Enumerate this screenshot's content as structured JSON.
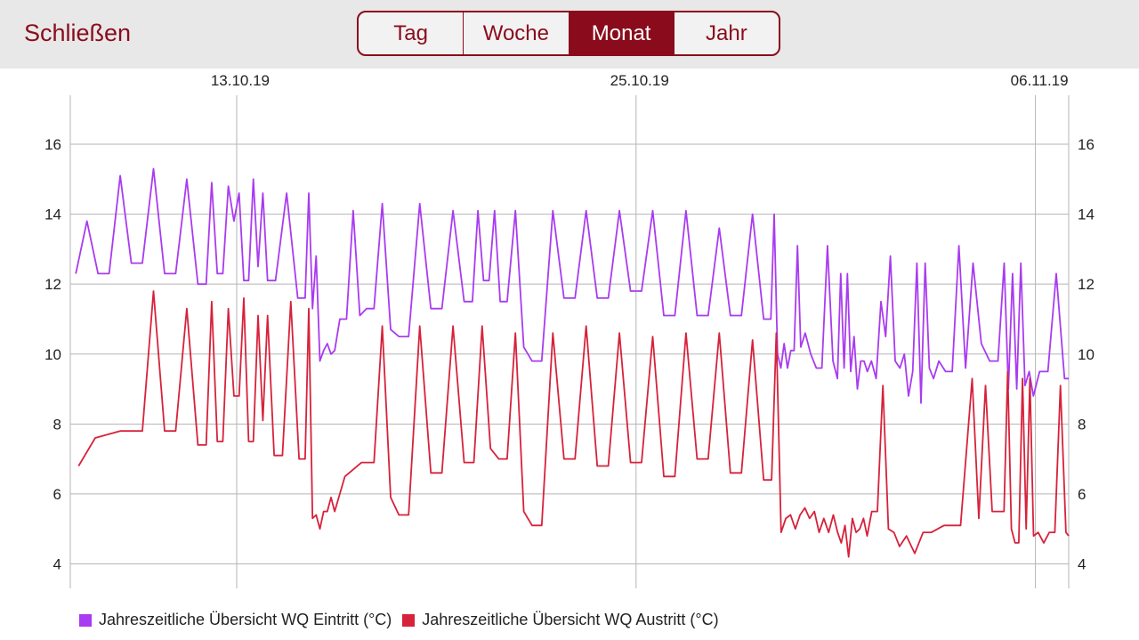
{
  "header": {
    "close_label": "Schließen",
    "tabs": [
      {
        "label": "Tag",
        "active": false
      },
      {
        "label": "Woche",
        "active": false
      },
      {
        "label": "Monat",
        "active": true
      },
      {
        "label": "Jahr",
        "active": false
      }
    ],
    "accent_color": "#8a0c1c"
  },
  "chart_data": {
    "type": "line",
    "title": "",
    "xlabel": "",
    "ylabel": "",
    "x_range": [
      "2019-10-08",
      "2019-11-07"
    ],
    "x_tick_labels": [
      "13.10.19",
      "25.10.19",
      "06.11.19"
    ],
    "ylim": [
      3.3,
      17.4
    ],
    "y_ticks": [
      4,
      6,
      8,
      10,
      12,
      14,
      16
    ],
    "grid": true,
    "legend_position": "bottom",
    "series": [
      {
        "name": "Jahreszeitliche Übersicht WQ Eintritt (°C)",
        "color": "#a93bf0",
        "points": [
          [
            "2019-10-08",
            12.3
          ],
          [
            "2019-10-08",
            13.8
          ],
          [
            "2019-10-08",
            12.3
          ],
          [
            "2019-10-09",
            12.3
          ],
          [
            "2019-10-09",
            15.1
          ],
          [
            "2019-10-09",
            12.6
          ],
          [
            "2019-10-10",
            12.6
          ],
          [
            "2019-10-10",
            15.3
          ],
          [
            "2019-10-10",
            12.3
          ],
          [
            "2019-10-11",
            12.3
          ],
          [
            "2019-10-11",
            15.0
          ],
          [
            "2019-10-11",
            12.0
          ],
          [
            "2019-10-12",
            12.0
          ],
          [
            "2019-10-12",
            14.9
          ],
          [
            "2019-10-12",
            12.3
          ],
          [
            "2019-10-12",
            12.3
          ],
          [
            "2019-10-12",
            14.8
          ],
          [
            "2019-10-12",
            13.8
          ],
          [
            "2019-10-13",
            14.6
          ],
          [
            "2019-10-13",
            12.1
          ],
          [
            "2019-10-13",
            12.1
          ],
          [
            "2019-10-13",
            15.0
          ],
          [
            "2019-10-13",
            12.5
          ],
          [
            "2019-10-13",
            14.6
          ],
          [
            "2019-10-13",
            12.1
          ],
          [
            "2019-10-14",
            12.1
          ],
          [
            "2019-10-14",
            14.6
          ],
          [
            "2019-10-14",
            11.6
          ],
          [
            "2019-10-15",
            11.6
          ],
          [
            "2019-10-15",
            14.6
          ],
          [
            "2019-10-15",
            11.3
          ],
          [
            "2019-10-15",
            12.8
          ],
          [
            "2019-10-15",
            9.8
          ],
          [
            "2019-10-15",
            10.1
          ],
          [
            "2019-10-15",
            10.3
          ],
          [
            "2019-10-15",
            10.0
          ],
          [
            "2019-10-15",
            10.1
          ],
          [
            "2019-10-16",
            11.0
          ],
          [
            "2019-10-16",
            11.0
          ],
          [
            "2019-10-16",
            14.1
          ],
          [
            "2019-10-16",
            11.1
          ],
          [
            "2019-10-16",
            11.3
          ],
          [
            "2019-10-17",
            11.3
          ],
          [
            "2019-10-17",
            14.3
          ],
          [
            "2019-10-17",
            10.7
          ],
          [
            "2019-10-17",
            10.5
          ],
          [
            "2019-10-18",
            10.5
          ],
          [
            "2019-10-18",
            14.3
          ],
          [
            "2019-10-18",
            11.3
          ],
          [
            "2019-10-19",
            11.3
          ],
          [
            "2019-10-19",
            14.1
          ],
          [
            "2019-10-19",
            11.5
          ],
          [
            "2019-10-20",
            11.5
          ],
          [
            "2019-10-20",
            14.1
          ],
          [
            "2019-10-20",
            12.1
          ],
          [
            "2019-10-20",
            12.1
          ],
          [
            "2019-10-20",
            14.1
          ],
          [
            "2019-10-20",
            11.5
          ],
          [
            "2019-10-21",
            11.5
          ],
          [
            "2019-10-21",
            14.1
          ],
          [
            "2019-10-21",
            10.2
          ],
          [
            "2019-10-21",
            9.8
          ],
          [
            "2019-10-22",
            9.8
          ],
          [
            "2019-10-22",
            14.1
          ],
          [
            "2019-10-22",
            11.6
          ],
          [
            "2019-10-23",
            11.6
          ],
          [
            "2019-10-23",
            14.1
          ],
          [
            "2019-10-23",
            11.6
          ],
          [
            "2019-10-24",
            11.6
          ],
          [
            "2019-10-24",
            14.1
          ],
          [
            "2019-10-24",
            11.8
          ],
          [
            "2019-10-25",
            11.8
          ],
          [
            "2019-10-25",
            14.1
          ],
          [
            "2019-10-25",
            11.1
          ],
          [
            "2019-10-26",
            11.1
          ],
          [
            "2019-10-26",
            14.1
          ],
          [
            "2019-10-26",
            11.1
          ],
          [
            "2019-10-27",
            11.1
          ],
          [
            "2019-10-27",
            13.6
          ],
          [
            "2019-10-27",
            11.1
          ],
          [
            "2019-10-28",
            11.1
          ],
          [
            "2019-10-28",
            14.0
          ],
          [
            "2019-10-28",
            11.0
          ],
          [
            "2019-10-29",
            11.0
          ],
          [
            "2019-10-29",
            14.0
          ],
          [
            "2019-10-29",
            10.0
          ],
          [
            "2019-10-29",
            9.6
          ],
          [
            "2019-10-29",
            10.3
          ],
          [
            "2019-10-29",
            9.6
          ],
          [
            "2019-10-29",
            10.1
          ],
          [
            "2019-10-29",
            10.1
          ],
          [
            "2019-10-29",
            13.1
          ],
          [
            "2019-10-29",
            10.2
          ],
          [
            "2019-10-30",
            10.6
          ],
          [
            "2019-10-30",
            10.0
          ],
          [
            "2019-10-30",
            9.6
          ],
          [
            "2019-10-30",
            9.6
          ],
          [
            "2019-10-30",
            13.1
          ],
          [
            "2019-10-30",
            9.8
          ],
          [
            "2019-10-31",
            9.3
          ],
          [
            "2019-10-31",
            12.3
          ],
          [
            "2019-10-31",
            9.6
          ],
          [
            "2019-10-31",
            12.3
          ],
          [
            "2019-10-31",
            9.5
          ],
          [
            "2019-10-31",
            10.5
          ],
          [
            "2019-10-31",
            9.0
          ],
          [
            "2019-10-31",
            9.8
          ],
          [
            "2019-10-31",
            9.8
          ],
          [
            "2019-10-31",
            9.5
          ],
          [
            "2019-11-01",
            9.8
          ],
          [
            "2019-11-01",
            9.3
          ],
          [
            "2019-11-01",
            11.5
          ],
          [
            "2019-11-01",
            10.5
          ],
          [
            "2019-11-01",
            12.8
          ],
          [
            "2019-11-01",
            9.8
          ],
          [
            "2019-11-01",
            9.6
          ],
          [
            "2019-11-02",
            10.0
          ],
          [
            "2019-11-02",
            8.8
          ],
          [
            "2019-11-02",
            9.5
          ],
          [
            "2019-11-02",
            12.6
          ],
          [
            "2019-11-02",
            8.6
          ],
          [
            "2019-11-02",
            12.6
          ],
          [
            "2019-11-02",
            9.6
          ],
          [
            "2019-11-02",
            9.3
          ],
          [
            "2019-11-03",
            9.8
          ],
          [
            "2019-11-03",
            9.5
          ],
          [
            "2019-11-03",
            9.5
          ],
          [
            "2019-11-03",
            13.1
          ],
          [
            "2019-11-03",
            9.6
          ],
          [
            "2019-11-04",
            12.6
          ],
          [
            "2019-11-04",
            10.3
          ],
          [
            "2019-11-04",
            9.8
          ],
          [
            "2019-11-04",
            9.8
          ],
          [
            "2019-11-05",
            12.6
          ],
          [
            "2019-11-05",
            9.0
          ],
          [
            "2019-11-05",
            12.3
          ],
          [
            "2019-11-05",
            9.0
          ],
          [
            "2019-11-05",
            12.6
          ],
          [
            "2019-11-05",
            9.1
          ],
          [
            "2019-11-05",
            9.5
          ],
          [
            "2019-11-05",
            8.8
          ],
          [
            "2019-11-06",
            9.5
          ],
          [
            "2019-11-06",
            9.5
          ],
          [
            "2019-11-06",
            12.3
          ],
          [
            "2019-11-06",
            9.3
          ],
          [
            "2019-11-07",
            9.3
          ]
        ]
      },
      {
        "name": "Jahreszeitliche Übersicht WQ Austritt (°C)",
        "color": "#d6223b",
        "points": [
          [
            "2019-10-08",
            6.8
          ],
          [
            "2019-10-08",
            7.6
          ],
          [
            "2019-10-09",
            7.8
          ],
          [
            "2019-10-10",
            7.8
          ],
          [
            "2019-10-10",
            11.8
          ],
          [
            "2019-10-10",
            7.8
          ],
          [
            "2019-10-11",
            7.8
          ],
          [
            "2019-10-11",
            11.3
          ],
          [
            "2019-10-11",
            7.4
          ],
          [
            "2019-10-12",
            7.4
          ],
          [
            "2019-10-12",
            11.5
          ],
          [
            "2019-10-12",
            7.5
          ],
          [
            "2019-10-12",
            7.5
          ],
          [
            "2019-10-12",
            11.3
          ],
          [
            "2019-10-12",
            8.8
          ],
          [
            "2019-10-13",
            8.8
          ],
          [
            "2019-10-13",
            11.6
          ],
          [
            "2019-10-13",
            7.5
          ],
          [
            "2019-10-13",
            7.5
          ],
          [
            "2019-10-13",
            11.1
          ],
          [
            "2019-10-13",
            8.1
          ],
          [
            "2019-10-13",
            11.1
          ],
          [
            "2019-10-14",
            7.1
          ],
          [
            "2019-10-14",
            7.1
          ],
          [
            "2019-10-14",
            11.5
          ],
          [
            "2019-10-14",
            7.0
          ],
          [
            "2019-10-15",
            7.0
          ],
          [
            "2019-10-15",
            11.3
          ],
          [
            "2019-10-15",
            5.3
          ],
          [
            "2019-10-15",
            5.4
          ],
          [
            "2019-10-15",
            5.0
          ],
          [
            "2019-10-15",
            5.5
          ],
          [
            "2019-10-15",
            5.5
          ],
          [
            "2019-10-15",
            5.9
          ],
          [
            "2019-10-15",
            5.5
          ],
          [
            "2019-10-16",
            6.5
          ],
          [
            "2019-10-16",
            6.9
          ],
          [
            "2019-10-17",
            6.9
          ],
          [
            "2019-10-17",
            10.8
          ],
          [
            "2019-10-17",
            5.9
          ],
          [
            "2019-10-17",
            5.4
          ],
          [
            "2019-10-18",
            5.4
          ],
          [
            "2019-10-18",
            10.8
          ],
          [
            "2019-10-18",
            6.6
          ],
          [
            "2019-10-19",
            6.6
          ],
          [
            "2019-10-19",
            10.8
          ],
          [
            "2019-10-19",
            6.9
          ],
          [
            "2019-10-20",
            6.9
          ],
          [
            "2019-10-20",
            10.8
          ],
          [
            "2019-10-20",
            7.3
          ],
          [
            "2019-10-20",
            7.0
          ],
          [
            "2019-10-21",
            7.0
          ],
          [
            "2019-10-21",
            10.6
          ],
          [
            "2019-10-21",
            5.5
          ],
          [
            "2019-10-21",
            5.1
          ],
          [
            "2019-10-22",
            5.1
          ],
          [
            "2019-10-22",
            10.6
          ],
          [
            "2019-10-22",
            7.0
          ],
          [
            "2019-10-23",
            7.0
          ],
          [
            "2019-10-23",
            10.8
          ],
          [
            "2019-10-23",
            6.8
          ],
          [
            "2019-10-24",
            6.8
          ],
          [
            "2019-10-24",
            10.6
          ],
          [
            "2019-10-24",
            6.9
          ],
          [
            "2019-10-25",
            6.9
          ],
          [
            "2019-10-25",
            10.5
          ],
          [
            "2019-10-25",
            6.5
          ],
          [
            "2019-10-26",
            6.5
          ],
          [
            "2019-10-26",
            10.6
          ],
          [
            "2019-10-26",
            7.0
          ],
          [
            "2019-10-27",
            7.0
          ],
          [
            "2019-10-27",
            10.6
          ],
          [
            "2019-10-27",
            6.6
          ],
          [
            "2019-10-28",
            6.6
          ],
          [
            "2019-10-28",
            10.4
          ],
          [
            "2019-10-28",
            6.4
          ],
          [
            "2019-10-29",
            6.4
          ],
          [
            "2019-10-29",
            10.6
          ],
          [
            "2019-10-29",
            4.9
          ],
          [
            "2019-10-29",
            5.3
          ],
          [
            "2019-10-29",
            5.4
          ],
          [
            "2019-10-29",
            5.0
          ],
          [
            "2019-10-29",
            5.4
          ],
          [
            "2019-10-30",
            5.6
          ],
          [
            "2019-10-30",
            5.3
          ],
          [
            "2019-10-30",
            5.5
          ],
          [
            "2019-10-30",
            4.9
          ],
          [
            "2019-10-30",
            5.3
          ],
          [
            "2019-10-30",
            4.9
          ],
          [
            "2019-10-30",
            5.4
          ],
          [
            "2019-10-31",
            4.9
          ],
          [
            "2019-10-31",
            4.6
          ],
          [
            "2019-10-31",
            5.1
          ],
          [
            "2019-10-31",
            4.2
          ],
          [
            "2019-10-31",
            5.3
          ],
          [
            "2019-10-31",
            4.9
          ],
          [
            "2019-10-31",
            5.0
          ],
          [
            "2019-10-31",
            5.3
          ],
          [
            "2019-10-31",
            4.8
          ],
          [
            "2019-11-01",
            5.5
          ],
          [
            "2019-11-01",
            5.5
          ],
          [
            "2019-11-01",
            9.1
          ],
          [
            "2019-11-01",
            5.0
          ],
          [
            "2019-11-01",
            4.9
          ],
          [
            "2019-11-01",
            4.5
          ],
          [
            "2019-11-02",
            4.8
          ],
          [
            "2019-11-02",
            4.3
          ],
          [
            "2019-11-02",
            4.9
          ],
          [
            "2019-11-02",
            4.9
          ],
          [
            "2019-11-03",
            5.1
          ],
          [
            "2019-11-03",
            5.1
          ],
          [
            "2019-11-04",
            9.3
          ],
          [
            "2019-11-04",
            5.3
          ],
          [
            "2019-11-04",
            9.1
          ],
          [
            "2019-11-04",
            5.5
          ],
          [
            "2019-11-04",
            5.5
          ],
          [
            "2019-11-05",
            5.5
          ],
          [
            "2019-11-05",
            9.5
          ],
          [
            "2019-11-05",
            5.0
          ],
          [
            "2019-11-05",
            4.6
          ],
          [
            "2019-11-05",
            4.6
          ],
          [
            "2019-11-05",
            9.3
          ],
          [
            "2019-11-05",
            5.0
          ],
          [
            "2019-11-05",
            9.3
          ],
          [
            "2019-11-05",
            4.8
          ],
          [
            "2019-11-06",
            4.9
          ],
          [
            "2019-11-06",
            4.6
          ],
          [
            "2019-11-06",
            4.9
          ],
          [
            "2019-11-06",
            4.9
          ],
          [
            "2019-11-06",
            9.1
          ],
          [
            "2019-11-06",
            4.9
          ],
          [
            "2019-11-07",
            4.8
          ]
        ]
      }
    ]
  }
}
